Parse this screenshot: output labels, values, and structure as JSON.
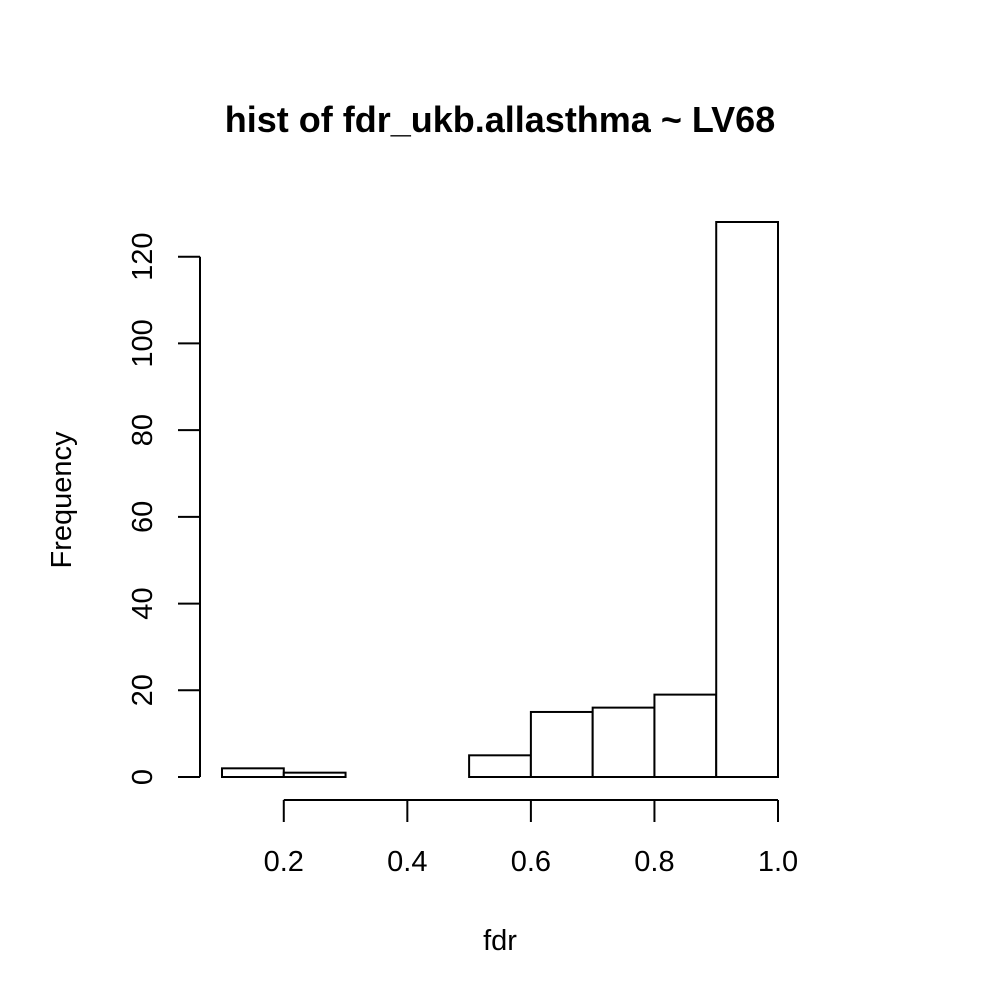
{
  "chart_data": {
    "type": "bar",
    "title": "hist of fdr_ukb.allasthma ~ LV68",
    "xlabel": "fdr",
    "ylabel": "Frequency",
    "bins": [
      {
        "start": 0.1,
        "end": 0.2,
        "count": 2
      },
      {
        "start": 0.2,
        "end": 0.3,
        "count": 1
      },
      {
        "start": 0.3,
        "end": 0.4,
        "count": 0
      },
      {
        "start": 0.4,
        "end": 0.5,
        "count": 0
      },
      {
        "start": 0.5,
        "end": 0.6,
        "count": 5
      },
      {
        "start": 0.6,
        "end": 0.7,
        "count": 15
      },
      {
        "start": 0.7,
        "end": 0.8,
        "count": 16
      },
      {
        "start": 0.8,
        "end": 0.9,
        "count": 19
      },
      {
        "start": 0.9,
        "end": 1.0,
        "count": 128
      }
    ],
    "xlim": [
      0.1,
      1.0
    ],
    "ylim": [
      0,
      128
    ],
    "x_ticks": [
      0.2,
      0.4,
      0.6,
      0.8,
      1.0
    ],
    "x_tick_labels": [
      "0.2",
      "0.4",
      "0.6",
      "0.8",
      "1.0"
    ],
    "y_ticks": [
      0,
      20,
      40,
      60,
      80,
      100,
      120
    ],
    "y_tick_labels": [
      "0",
      "20",
      "40",
      "60",
      "80",
      "100",
      "120"
    ],
    "grid": false,
    "colors": {
      "bar_fill": "#ffffff",
      "bar_stroke": "#000000",
      "axis": "#000000"
    }
  }
}
